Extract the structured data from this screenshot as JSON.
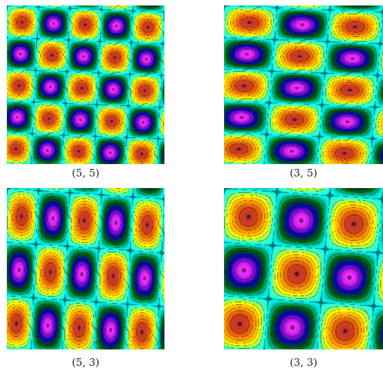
{
  "panels": [
    {
      "caption": "(5, 5)",
      "mode": [
        5,
        5
      ]
    },
    {
      "caption": "(3, 5)",
      "mode": [
        3,
        5
      ]
    },
    {
      "caption": "(5, 3)",
      "mode": [
        5,
        3
      ]
    },
    {
      "caption": "(3, 3)",
      "mode": [
        3,
        3
      ]
    }
  ],
  "colormap": [
    "#ff00ff",
    "#0000aa",
    "#006400",
    "#00ffff",
    "#ffff00",
    "#ff8c00",
    "#b40000"
  ],
  "contour_line_color": "#000000"
}
